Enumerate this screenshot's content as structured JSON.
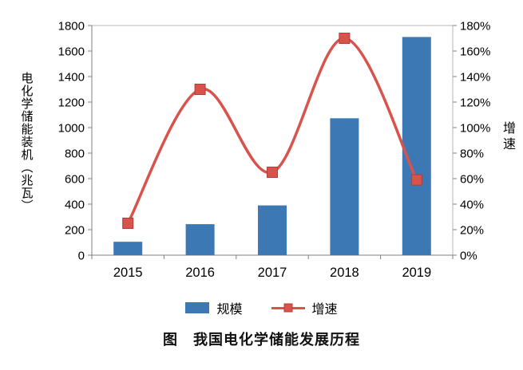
{
  "chart_data": {
    "type": "bar+line",
    "title": "图　我国电化学储能发展历程",
    "categories": [
      "2015",
      "2016",
      "2017",
      "2018",
      "2019"
    ],
    "series": [
      {
        "name": "规模",
        "type": "bar",
        "axis": "left",
        "values": [
          105,
          243,
          390,
          1073,
          1710
        ],
        "color": "#3b78b4"
      },
      {
        "name": "增速",
        "type": "line",
        "axis": "right",
        "values": [
          25,
          130,
          65,
          170,
          59
        ],
        "unit": "%",
        "color": "#d9534d"
      }
    ],
    "left_axis": {
      "label": "电化学储能装机（兆瓦）",
      "min": 0,
      "max": 1800,
      "step": 200,
      "ticks": [
        "0",
        "200",
        "400",
        "600",
        "800",
        "1000",
        "1200",
        "1400",
        "1600",
        "1800"
      ]
    },
    "right_axis": {
      "label": "增速",
      "min": 0,
      "max": 180,
      "step": 20,
      "ticks": [
        "0%",
        "20%",
        "40%",
        "60%",
        "80%",
        "100%",
        "120%",
        "140%",
        "160%",
        "180%"
      ]
    },
    "legend": {
      "position": "bottom",
      "items": [
        "规模",
        "增速"
      ]
    },
    "grid": false
  },
  "colors": {
    "bar": "#3b78b4",
    "line": "#d9534d",
    "marker_border": "#b23c35",
    "axis": "#7f7f7f",
    "plot_border": "#b7b7b7",
    "text": "#000000"
  }
}
